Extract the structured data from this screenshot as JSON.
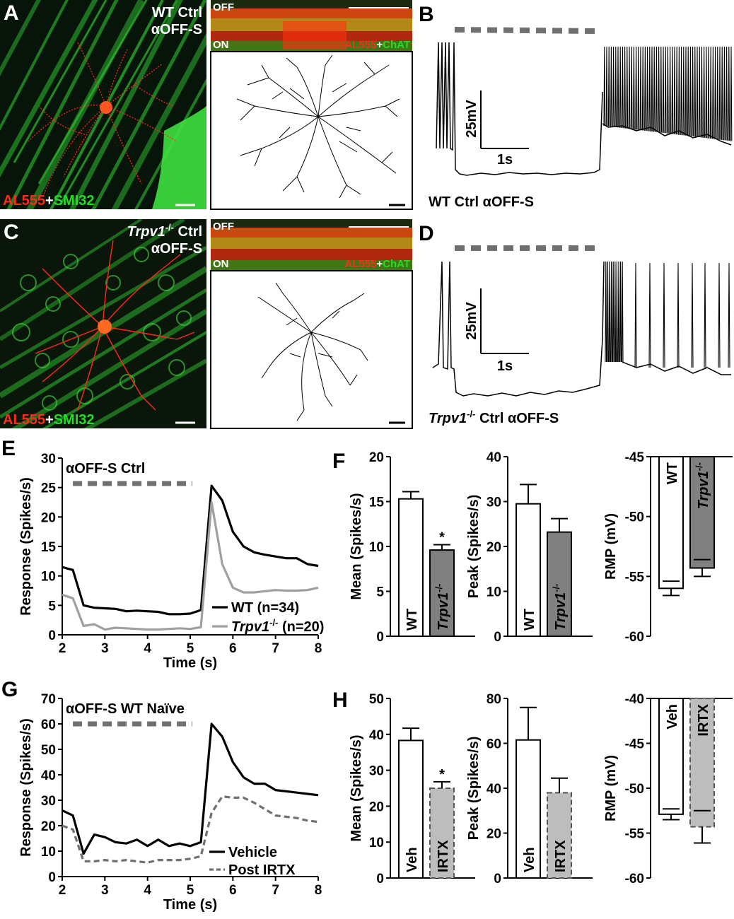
{
  "panels": {
    "A": {
      "letter": "A",
      "title_line1": "WT Ctrl",
      "title_line2": "αOFF-S",
      "stain_red": "AL555",
      "stain_plus": "+",
      "stain_green": "SMI32",
      "strip_off": "OFF",
      "strip_on": "ON",
      "strip_red": "AL555",
      "strip_plus": "+",
      "strip_green": "ChAT"
    },
    "B": {
      "letter": "B",
      "scale_y": "25mV",
      "scale_x": "1s",
      "caption": "WT Ctrl αOFF-S"
    },
    "C": {
      "letter": "C",
      "title_italic": "Trpv1",
      "title_sup": "-/-",
      "title_rest": " Ctrl",
      "title_line2": "αOFF-S",
      "stain_red": "AL555",
      "stain_plus": "+",
      "stain_green": "SMI32",
      "strip_off": "OFF",
      "strip_on": "ON",
      "strip_red": "AL555",
      "strip_plus": "+",
      "strip_green": "ChAT"
    },
    "D": {
      "letter": "D",
      "scale_y": "25mV",
      "scale_x": "1s",
      "caption_italic": "Trpv1",
      "caption_sup": "-/-",
      "caption_rest": " Ctrl αOFF-S"
    },
    "E": {
      "letter": "E"
    },
    "F": {
      "letter": "F"
    },
    "G": {
      "letter": "G"
    },
    "H": {
      "letter": "H"
    }
  },
  "colors": {
    "red_stain": "#ff2a1a",
    "green_stain": "#22dd22",
    "black": "#000000",
    "gray_series": "#a0a0a0",
    "dark_gray_bar": "#808080",
    "light_gray_bar": "#bdbdbd",
    "dash_gray": "#707070"
  },
  "chart_data": [
    {
      "id": "E",
      "type": "line",
      "title": "αOFF-S Ctrl",
      "xlabel": "Time (s)",
      "ylabel": "Response (Spikes/s)",
      "xlim": [
        2,
        8
      ],
      "ylim": [
        0,
        30
      ],
      "xticks": [
        2,
        3,
        4,
        5,
        6,
        7,
        8
      ],
      "yticks": [
        0,
        5,
        10,
        15,
        20,
        25,
        30
      ],
      "stimulus": [
        2.25,
        5.05
      ],
      "legend_position": "bottom-right",
      "series": [
        {
          "name": "WT (n=34)",
          "name_italic": "",
          "name_sup": "",
          "color": "#000000",
          "dashed": false,
          "x": [
            2.0,
            2.25,
            2.5,
            2.75,
            3.0,
            3.25,
            3.5,
            3.75,
            4.0,
            4.25,
            4.5,
            4.75,
            5.0,
            5.25,
            5.5,
            5.75,
            6.0,
            6.25,
            6.5,
            6.75,
            7.0,
            7.25,
            7.5,
            7.75,
            8.0
          ],
          "y": [
            11.5,
            11.0,
            5.0,
            4.6,
            4.5,
            4.4,
            4.0,
            4.1,
            4.0,
            3.9,
            3.5,
            3.5,
            3.6,
            4.2,
            25.3,
            22.8,
            17.5,
            15.0,
            14.0,
            13.6,
            13.3,
            13.0,
            13.0,
            12.0,
            11.7
          ]
        },
        {
          "name": "Trpv1-/- (n=20)",
          "name_italic": "Trpv1",
          "name_sup": "-/-",
          "name_rest": " (n=20)",
          "color": "#a0a0a0",
          "dashed": false,
          "x": [
            2.0,
            2.25,
            2.5,
            2.75,
            3.0,
            3.25,
            3.5,
            3.75,
            4.0,
            4.25,
            4.5,
            4.75,
            5.0,
            5.25,
            5.5,
            5.75,
            6.0,
            6.25,
            6.5,
            6.75,
            7.0,
            7.25,
            7.5,
            7.75,
            8.0
          ],
          "y": [
            6.8,
            6.2,
            1.5,
            1.8,
            0.9,
            1.2,
            1.1,
            1.0,
            0.9,
            0.9,
            1.0,
            1.1,
            1.0,
            1.3,
            22.5,
            12.0,
            8.0,
            7.2,
            7.2,
            7.4,
            7.6,
            7.5,
            7.5,
            7.6,
            8.0
          ]
        }
      ]
    },
    {
      "id": "F-mean",
      "type": "bar",
      "ylabel": "Mean (Spikes/s)",
      "ylim": [
        0,
        20
      ],
      "yticks": [
        0,
        5,
        10,
        15,
        20
      ],
      "bars": [
        {
          "label": "WT",
          "italic": false,
          "sup": "",
          "value": 15.3,
          "err": 0.8,
          "fill": "#ffffff",
          "dashed": false,
          "star": ""
        },
        {
          "label": "Trpv1",
          "italic": true,
          "sup": "-/-",
          "value": 9.6,
          "err": 0.6,
          "fill": "#808080",
          "dashed": false,
          "star": "*"
        }
      ]
    },
    {
      "id": "F-peak",
      "type": "bar",
      "ylabel": "Peak (Spikes/s)",
      "ylim": [
        0,
        40
      ],
      "yticks": [
        0,
        10,
        20,
        30,
        40
      ],
      "bars": [
        {
          "label": "WT",
          "italic": false,
          "sup": "",
          "value": 29.5,
          "err": 4.3,
          "fill": "#ffffff",
          "dashed": false,
          "star": ""
        },
        {
          "label": "Trpv1",
          "italic": true,
          "sup": "-/-",
          "value": 23.2,
          "err": 3.0,
          "fill": "#808080",
          "dashed": false,
          "star": ""
        }
      ]
    },
    {
      "id": "F-rmp",
      "type": "bar",
      "ylabel": "RMP (mV)",
      "ylim": [
        -60,
        -45
      ],
      "yticks": [
        -60,
        -55,
        -50,
        -45
      ],
      "baseline": -45,
      "bars": [
        {
          "label": "WT",
          "italic": false,
          "sup": "",
          "value": -56.0,
          "err": 0.6,
          "fill": "#ffffff",
          "dashed": false,
          "star": ""
        },
        {
          "label": "Trpv1",
          "italic": true,
          "sup": "-/-",
          "value": -54.3,
          "err": 0.7,
          "fill": "#808080",
          "dashed": false,
          "star": ""
        }
      ]
    },
    {
      "id": "G",
      "type": "line",
      "title": "αOFF-S WT Naïve",
      "xlabel": "Time (s)",
      "ylabel": "Response (Spikes/s)",
      "xlim": [
        2,
        8
      ],
      "ylim": [
        0,
        70
      ],
      "xticks": [
        2,
        3,
        4,
        5,
        6,
        7,
        8
      ],
      "yticks": [
        0,
        10,
        20,
        30,
        40,
        50,
        60,
        70
      ],
      "stimulus": [
        2.25,
        5.05
      ],
      "legend_position": "bottom-right",
      "series": [
        {
          "name": "Vehicle",
          "color": "#000000",
          "dashed": false,
          "x": [
            2.0,
            2.25,
            2.5,
            2.75,
            3.0,
            3.25,
            3.5,
            3.75,
            4.0,
            4.25,
            4.5,
            4.75,
            5.0,
            5.25,
            5.5,
            5.75,
            6.0,
            6.25,
            6.5,
            6.75,
            7.0,
            7.25,
            7.5,
            7.75,
            8.0
          ],
          "y": [
            26.0,
            24.0,
            9.0,
            16.5,
            15.5,
            13.5,
            13.0,
            14.5,
            12.0,
            14.5,
            12.0,
            13.0,
            12.0,
            13.5,
            60.0,
            55.0,
            45.0,
            39.0,
            36.5,
            36.5,
            34.0,
            33.5,
            33.0,
            32.5,
            32.0
          ]
        },
        {
          "name": "Post IRTX",
          "color": "#707070",
          "dashed": true,
          "x": [
            2.0,
            2.25,
            2.5,
            2.75,
            3.0,
            3.25,
            3.5,
            3.75,
            4.0,
            4.25,
            4.5,
            4.75,
            5.0,
            5.25,
            5.5,
            5.75,
            6.0,
            6.25,
            6.5,
            6.75,
            7.0,
            7.25,
            7.5,
            7.75,
            8.0
          ],
          "y": [
            20.0,
            18.5,
            6.0,
            6.0,
            6.5,
            6.0,
            6.5,
            6.0,
            5.5,
            6.5,
            6.5,
            6.5,
            7.0,
            8.0,
            25.0,
            31.5,
            31.0,
            31.0,
            29.0,
            26.5,
            24.0,
            23.5,
            23.0,
            22.0,
            21.5
          ]
        }
      ]
    },
    {
      "id": "H-mean",
      "type": "bar",
      "ylabel": "Mean (Spikes/s)",
      "ylim": [
        0,
        50
      ],
      "yticks": [
        0,
        10,
        20,
        30,
        40,
        50
      ],
      "bars": [
        {
          "label": "Veh",
          "italic": false,
          "sup": "",
          "value": 38.3,
          "err": 3.4,
          "fill": "#ffffff",
          "dashed": false,
          "star": ""
        },
        {
          "label": "IRTX",
          "italic": false,
          "sup": "",
          "value": 25.0,
          "err": 1.8,
          "fill": "#bdbdbd",
          "dashed": true,
          "star": "*"
        }
      ]
    },
    {
      "id": "H-peak",
      "type": "bar",
      "ylabel": "Peak (Spikes/s)",
      "ylim": [
        0,
        80
      ],
      "yticks": [
        0,
        20,
        40,
        60,
        80
      ],
      "bars": [
        {
          "label": "Veh",
          "italic": false,
          "sup": "",
          "value": 61.5,
          "err": 14.5,
          "fill": "#ffffff",
          "dashed": false,
          "star": ""
        },
        {
          "label": "IRTX",
          "italic": false,
          "sup": "",
          "value": 38.0,
          "err": 6.5,
          "fill": "#bdbdbd",
          "dashed": true,
          "star": ""
        }
      ]
    },
    {
      "id": "H-rmp",
      "type": "bar",
      "ylabel": "RMP (mV)",
      "ylim": [
        -60,
        -40
      ],
      "yticks": [
        -60,
        -55,
        -50,
        -45,
        -40
      ],
      "baseline": -40,
      "bars": [
        {
          "label": "Veh",
          "italic": false,
          "sup": "",
          "value": -52.9,
          "err": 0.6,
          "fill": "#ffffff",
          "dashed": false,
          "star": ""
        },
        {
          "label": "IRTX",
          "italic": false,
          "sup": "",
          "value": -54.3,
          "err": 1.8,
          "fill": "#bdbdbd",
          "dashed": true,
          "star": ""
        }
      ]
    }
  ]
}
